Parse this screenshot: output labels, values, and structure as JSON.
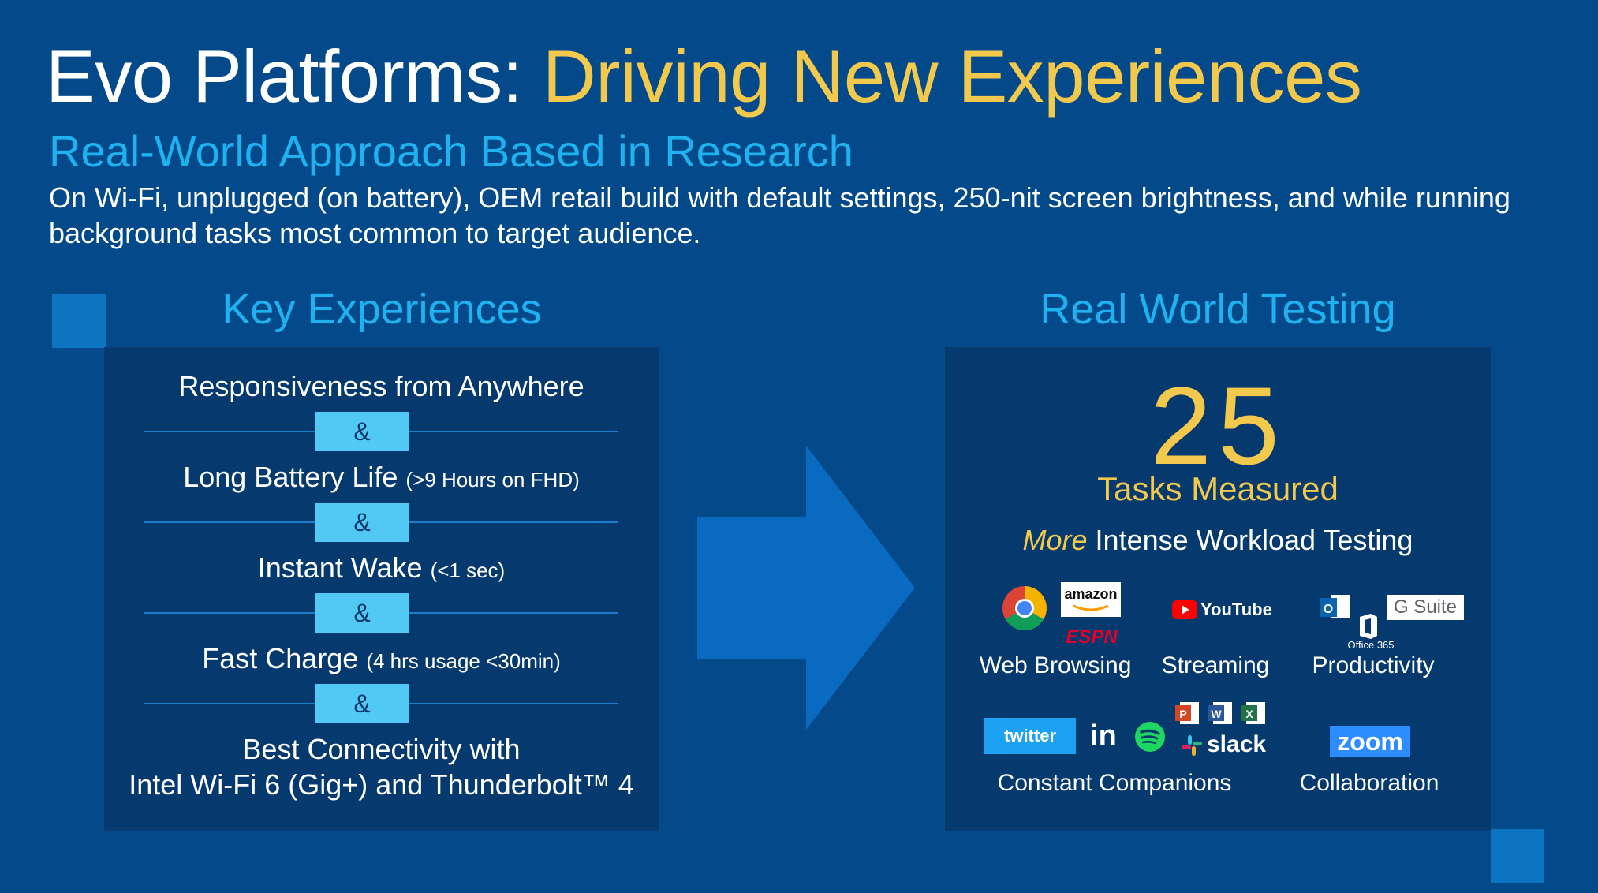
{
  "title": {
    "part1": "Evo Platforms: ",
    "part2": "Driving New Experiences"
  },
  "subtitle": "Real-World Approach Based in Research",
  "description": "On Wi-Fi, unplugged (on battery), OEM retail build with default settings, 250-nit screen brightness, and while running background tasks most common to target audience.",
  "key_experiences": {
    "heading": "Key Experiences",
    "items": [
      {
        "main": "Responsiveness from Anywhere",
        "note": ""
      },
      {
        "main": "Long Battery Life",
        "note": "(>9 Hours on FHD)"
      },
      {
        "main": "Instant Wake",
        "note": "(<1 sec)"
      },
      {
        "main": "Fast Charge",
        "note": "(4 hrs usage <30min)"
      },
      {
        "main": "Best Connectivity with",
        "line2": "Intel Wi-Fi 6 (Gig+) and Thunderbolt™ 4"
      }
    ],
    "separator": "&"
  },
  "real_world": {
    "heading": "Real World Testing",
    "number": "25",
    "number_label": "Tasks Measured",
    "workload_more": "More",
    "workload_rest": " Intense Workload Testing",
    "categories": [
      {
        "label": "Web Browsing",
        "logos": [
          "chrome-icon",
          "amazon-logo",
          "espn-logo"
        ]
      },
      {
        "label": "Streaming",
        "logos": [
          "youtube-logo"
        ]
      },
      {
        "label": "Productivity",
        "logos": [
          "outlook-icon",
          "office365-icon",
          "gsuite-logo"
        ]
      },
      {
        "label": "Constant Companions",
        "logos": [
          "twitter-logo",
          "linkedin-icon",
          "spotify-icon",
          "powerpoint-icon",
          "word-icon",
          "excel-icon",
          "slack-logo"
        ]
      },
      {
        "label": "Collaboration",
        "logos": [
          "zoom-logo"
        ]
      }
    ],
    "logo_text": {
      "amazon": "amazon",
      "espn": "ESPN",
      "youtube": "YouTube",
      "gsuite": "G Suite",
      "office365": "Office 365",
      "twitter": "twitter",
      "linkedin": "in",
      "slack": "slack",
      "zoom": "zoom"
    }
  },
  "colors": {
    "background": "#044A8B",
    "title_accent": "#F2C94C",
    "subtitle": "#1EB3F0",
    "panel": "#063A6E",
    "amp_box": "#52C8F5",
    "arrow": "#0A6AC0"
  }
}
